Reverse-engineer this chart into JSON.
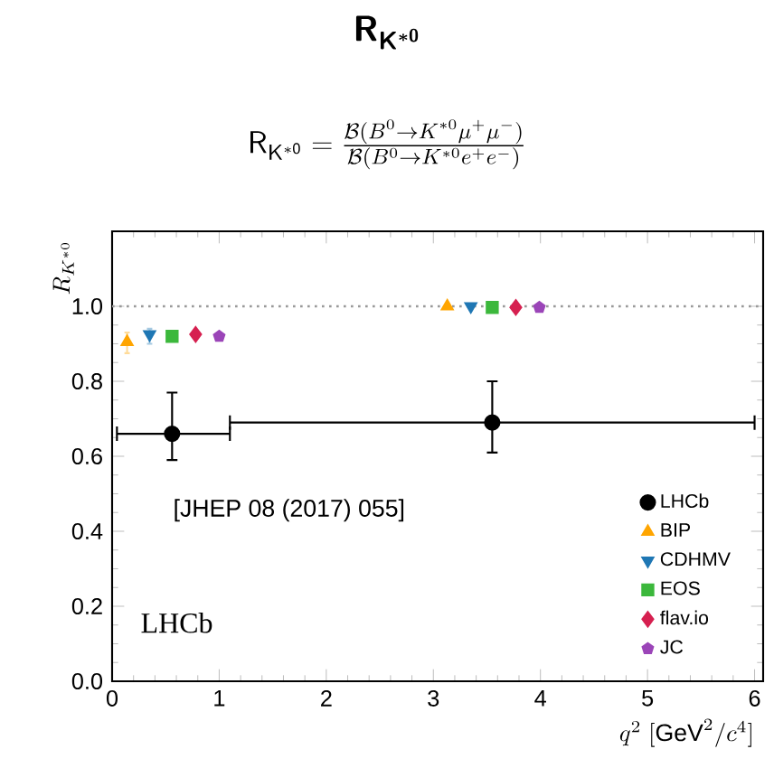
{
  "chart_data": {
    "type": "scatter",
    "title": "\\boldsymbol{\\mathsf{R_{K^{*0}}}}",
    "subtitle": "\\mathsf{R_{K^{*0}}} = \\frac{\\mathcal{B}(B^0\\to K^{*0}\\mu^+\\mu^-)}{\\mathcal{B}(B^0\\to K^{*0}e^+e^-)}",
    "xlabel": "q^2\\ [\\mathrm{GeV}^2/c^4]",
    "ylabel": "R_{K^{*0}}",
    "xlim": [
      0,
      6.08
    ],
    "ylim": [
      0,
      1.2
    ],
    "xticks": [
      0,
      1,
      2,
      3,
      4,
      5,
      6
    ],
    "yticks": [
      {
        "value": 0,
        "label": "0.0"
      },
      {
        "value": 0.2,
        "label": "0.2"
      },
      {
        "value": 0.4,
        "label": "0.4"
      },
      {
        "value": 0.6,
        "label": "0.6"
      },
      {
        "value": 0.8,
        "label": "0.8"
      },
      {
        "value": 1.0,
        "label": "1.0"
      }
    ],
    "legend": "bottom right",
    "grid": false,
    "ref_lines": [
      {
        "axis": "y",
        "value": 1.0,
        "color": "#999999",
        "line_style": "dotted"
      }
    ],
    "annotations": [
      "[JHEP 08 (2017) 055]",
      "LHCb"
    ],
    "series": [
      {
        "name": "LHCb",
        "color": "#000000",
        "marker": "circle",
        "x": [
          0.56,
          3.55
        ],
        "values": [
          0.66,
          0.69
        ],
        "errors": [
          [
            0.59,
            0.77
          ],
          [
            0.61,
            0.8
          ]
        ],
        "xerrors": [
          [
            0.045,
            1.1
          ],
          [
            1.1,
            6.0
          ]
        ]
      },
      {
        "name": "BIP",
        "color": "#ffa500",
        "marker": "triangle",
        "x": [
          0.14,
          3.13
        ],
        "values": [
          0.905,
          1.0
        ],
        "errors": [
          [
            0.875,
            0.93
          ],
          null
        ]
      },
      {
        "name": "CDHMV",
        "color": "#1f77b4",
        "marker": "triangle-down",
        "x": [
          0.35,
          3.35
        ],
        "values": [
          0.925,
          1.0
        ],
        "errors": [
          [
            0.9,
            0.94
          ],
          null
        ]
      },
      {
        "name": "EOS",
        "color": "#3cb83c",
        "marker": "square",
        "x": [
          0.56,
          3.55
        ],
        "values": [
          0.92,
          0.997
        ]
      },
      {
        "name": "flav.io",
        "color": "#d62050",
        "marker": "diamond",
        "x": [
          0.78,
          3.77
        ],
        "values": [
          0.925,
          0.997
        ]
      },
      {
        "name": "JC",
        "color": "#9b45b8",
        "x": [
          1.0,
          3.99
        ],
        "values": [
          0.92,
          0.997
        ]
      }
    ]
  }
}
